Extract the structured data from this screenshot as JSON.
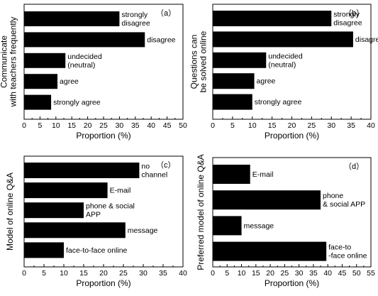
{
  "chart_data": [
    {
      "type": "bar",
      "orientation": "horizontal",
      "panel_label": "（a）",
      "ylabel_lines": [
        "Communicate",
        "with teachers frequently"
      ],
      "xlabel": "Proportion (%)",
      "xlim": [
        0,
        50
      ],
      "xticks": [
        0,
        5,
        10,
        15,
        20,
        25,
        30,
        35,
        40,
        45,
        50
      ],
      "categories": [
        [
          "strongly",
          "disagree"
        ],
        [
          "disagree"
        ],
        [
          "undecided",
          "(neutral)"
        ],
        [
          "agree"
        ],
        [
          "strongly agree"
        ]
      ],
      "values": [
        30,
        38,
        13,
        10.5,
        8.5
      ]
    },
    {
      "type": "bar",
      "orientation": "horizontal",
      "panel_label": "（b）",
      "ylabel_lines": [
        "Questions can",
        "be solved online"
      ],
      "xlabel": "Proportion (%)",
      "xlim": [
        0,
        40
      ],
      "xticks": [
        0,
        5,
        10,
        15,
        20,
        25,
        30,
        35,
        40
      ],
      "categories": [
        [
          "strongly",
          "disagree"
        ],
        [
          "disagree"
        ],
        [
          "undecided",
          "(neutral)"
        ],
        [
          "agree"
        ],
        [
          "strongly agree"
        ]
      ],
      "values": [
        30,
        35.5,
        13.5,
        10.5,
        10
      ]
    },
    {
      "type": "bar",
      "orientation": "horizontal",
      "panel_label": "（c）",
      "ylabel_lines": [
        "Model of online Q&A"
      ],
      "xlabel": "Proportion (%)",
      "xlim": [
        0,
        40
      ],
      "xticks": [
        0,
        5,
        10,
        15,
        20,
        25,
        30,
        35,
        40
      ],
      "categories": [
        [
          "no",
          "channel"
        ],
        [
          "E-mail"
        ],
        [
          "phone & social",
          "APP"
        ],
        [
          "message"
        ],
        [
          "face-to-face online"
        ]
      ],
      "values": [
        29,
        21,
        15,
        25.5,
        10
      ]
    },
    {
      "type": "bar",
      "orientation": "horizontal",
      "panel_label": "（d）",
      "ylabel_lines": [
        "Preferred model of online Q&A"
      ],
      "xlabel": "Proportion (%)",
      "xlim": [
        0,
        55
      ],
      "xticks": [
        0,
        5,
        10,
        15,
        20,
        25,
        30,
        35,
        40,
        45,
        50,
        55
      ],
      "categories": [
        [
          "E-mail"
        ],
        [
          "phone",
          "& social APP"
        ],
        [
          "message"
        ],
        [
          "face-to",
          "-face online"
        ]
      ],
      "values": [
        13,
        37.5,
        10,
        39.5
      ]
    }
  ]
}
